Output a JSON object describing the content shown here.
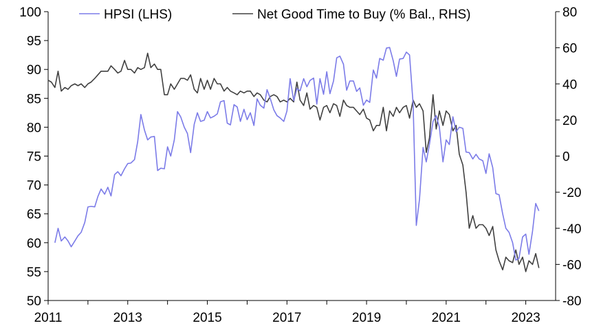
{
  "chart_data": {
    "type": "line",
    "title": "",
    "xlabel": "",
    "ylabel_left": "",
    "ylabel_right": "",
    "x_ticks": [
      "2011",
      "2013",
      "2015",
      "2017",
      "2019",
      "2021",
      "2023"
    ],
    "x_range": [
      2011.0,
      2023.75
    ],
    "ylim_left": [
      50,
      100
    ],
    "ylim_right": [
      -80,
      80
    ],
    "yticks_left": [
      "100",
      "95",
      "90",
      "85",
      "80",
      "75",
      "70",
      "65",
      "60",
      "55",
      "50"
    ],
    "yticks_right": [
      "80",
      "60",
      "40",
      "20",
      "0",
      "-20",
      "-40",
      "-60",
      "-80"
    ],
    "legend": {
      "placement": "top"
    },
    "series": [
      {
        "name": "HPSI (LHS)",
        "axis": "left",
        "color": "#7b7be8",
        "points": [
          [
            2011.17,
            60.0
          ],
          [
            2011.25,
            62.5
          ],
          [
            2011.33,
            60.3
          ],
          [
            2011.42,
            61.0
          ],
          [
            2011.5,
            60.3
          ],
          [
            2011.58,
            59.3
          ],
          [
            2011.67,
            60.3
          ],
          [
            2011.75,
            61.2
          ],
          [
            2011.83,
            61.8
          ],
          [
            2011.92,
            63.5
          ],
          [
            2012.0,
            66.2
          ],
          [
            2012.08,
            66.3
          ],
          [
            2012.17,
            66.2
          ],
          [
            2012.25,
            68.0
          ],
          [
            2012.33,
            69.3
          ],
          [
            2012.42,
            68.4
          ],
          [
            2012.5,
            69.6
          ],
          [
            2012.58,
            68.1
          ],
          [
            2012.67,
            71.8
          ],
          [
            2012.75,
            72.3
          ],
          [
            2012.83,
            71.6
          ],
          [
            2012.92,
            72.8
          ],
          [
            2013.0,
            73.7
          ],
          [
            2013.08,
            73.8
          ],
          [
            2013.17,
            74.4
          ],
          [
            2013.25,
            77.5
          ],
          [
            2013.33,
            82.2
          ],
          [
            2013.42,
            79.5
          ],
          [
            2013.5,
            77.8
          ],
          [
            2013.58,
            78.3
          ],
          [
            2013.67,
            78.4
          ],
          [
            2013.75,
            72.5
          ],
          [
            2013.83,
            72.9
          ],
          [
            2013.92,
            72.8
          ],
          [
            2014.0,
            76.6
          ],
          [
            2014.08,
            75.0
          ],
          [
            2014.17,
            77.8
          ],
          [
            2014.25,
            82.7
          ],
          [
            2014.33,
            81.8
          ],
          [
            2014.42,
            80.0
          ],
          [
            2014.5,
            78.9
          ],
          [
            2014.58,
            75.6
          ],
          [
            2014.67,
            80.5
          ],
          [
            2014.75,
            82.5
          ],
          [
            2014.83,
            81.0
          ],
          [
            2014.92,
            81.2
          ],
          [
            2015.0,
            82.7
          ],
          [
            2015.08,
            81.6
          ],
          [
            2015.17,
            81.9
          ],
          [
            2015.25,
            82.3
          ],
          [
            2015.33,
            84.4
          ],
          [
            2015.42,
            84.6
          ],
          [
            2015.5,
            80.7
          ],
          [
            2015.58,
            80.4
          ],
          [
            2015.67,
            83.9
          ],
          [
            2015.75,
            83.5
          ],
          [
            2015.83,
            81.0
          ],
          [
            2015.92,
            83.1
          ],
          [
            2016.0,
            81.3
          ],
          [
            2016.08,
            82.5
          ],
          [
            2016.17,
            80.3
          ],
          [
            2016.25,
            84.9
          ],
          [
            2016.33,
            83.8
          ],
          [
            2016.42,
            83.3
          ],
          [
            2016.5,
            86.5
          ],
          [
            2016.58,
            85.0
          ],
          [
            2016.67,
            83.0
          ],
          [
            2016.75,
            82.0
          ],
          [
            2016.83,
            81.6
          ],
          [
            2016.92,
            81.0
          ],
          [
            2017.0,
            82.8
          ],
          [
            2017.08,
            88.4
          ],
          [
            2017.17,
            84.6
          ],
          [
            2017.25,
            86.7
          ],
          [
            2017.33,
            86.3
          ],
          [
            2017.42,
            88.4
          ],
          [
            2017.5,
            87.0
          ],
          [
            2017.58,
            88.1
          ],
          [
            2017.67,
            88.5
          ],
          [
            2017.75,
            84.0
          ],
          [
            2017.83,
            88.4
          ],
          [
            2017.92,
            85.7
          ],
          [
            2018.0,
            89.6
          ],
          [
            2018.08,
            85.8
          ],
          [
            2018.17,
            88.0
          ],
          [
            2018.25,
            92.0
          ],
          [
            2018.33,
            92.3
          ],
          [
            2018.42,
            90.9
          ],
          [
            2018.5,
            86.4
          ],
          [
            2018.58,
            88.0
          ],
          [
            2018.67,
            88.0
          ],
          [
            2018.75,
            86.2
          ],
          [
            2018.83,
            86.8
          ],
          [
            2018.92,
            83.8
          ],
          [
            2019.0,
            84.7
          ],
          [
            2019.08,
            84.3
          ],
          [
            2019.17,
            89.9
          ],
          [
            2019.25,
            88.5
          ],
          [
            2019.33,
            91.9
          ],
          [
            2019.42,
            91.6
          ],
          [
            2019.5,
            93.7
          ],
          [
            2019.58,
            93.8
          ],
          [
            2019.67,
            91.5
          ],
          [
            2019.75,
            88.8
          ],
          [
            2019.83,
            91.8
          ],
          [
            2019.92,
            91.9
          ],
          [
            2020.0,
            93.0
          ],
          [
            2020.08,
            92.5
          ],
          [
            2020.17,
            84.0
          ],
          [
            2020.25,
            63.0
          ],
          [
            2020.33,
            67.5
          ],
          [
            2020.42,
            76.5
          ],
          [
            2020.5,
            74.0
          ],
          [
            2020.58,
            77.0
          ],
          [
            2020.67,
            81.0
          ],
          [
            2020.75,
            82.0
          ],
          [
            2020.83,
            80.0
          ],
          [
            2020.92,
            74.0
          ],
          [
            2021.0,
            77.8
          ],
          [
            2021.08,
            77.0
          ],
          [
            2021.17,
            81.8
          ],
          [
            2021.25,
            79.2
          ],
          [
            2021.33,
            80.0
          ],
          [
            2021.42,
            79.8
          ],
          [
            2021.5,
            75.7
          ],
          [
            2021.58,
            75.6
          ],
          [
            2021.67,
            74.5
          ],
          [
            2021.75,
            75.3
          ],
          [
            2021.83,
            74.5
          ],
          [
            2021.92,
            74.2
          ],
          [
            2022.0,
            72.0
          ],
          [
            2022.08,
            75.4
          ],
          [
            2022.17,
            73.0
          ],
          [
            2022.25,
            68.5
          ],
          [
            2022.33,
            68.3
          ],
          [
            2022.42,
            65.0
          ],
          [
            2022.5,
            62.5
          ],
          [
            2022.58,
            61.8
          ],
          [
            2022.67,
            60.0
          ],
          [
            2022.75,
            57.0
          ],
          [
            2022.83,
            57.3
          ],
          [
            2022.92,
            61.0
          ],
          [
            2023.0,
            61.5
          ],
          [
            2023.08,
            58.0
          ],
          [
            2023.17,
            62.0
          ],
          [
            2023.25,
            66.8
          ],
          [
            2023.33,
            65.5
          ]
        ]
      },
      {
        "name": "Net Good Time to Buy (% Bal., RHS)",
        "axis": "right",
        "color": "#404040",
        "points": [
          [
            2011.0,
            42
          ],
          [
            2011.08,
            41
          ],
          [
            2011.17,
            38
          ],
          [
            2011.25,
            47
          ],
          [
            2011.33,
            36
          ],
          [
            2011.42,
            38
          ],
          [
            2011.5,
            37
          ],
          [
            2011.58,
            39
          ],
          [
            2011.67,
            40
          ],
          [
            2011.75,
            39
          ],
          [
            2011.83,
            40
          ],
          [
            2011.92,
            38
          ],
          [
            2012.0,
            40
          ],
          [
            2012.08,
            41
          ],
          [
            2012.17,
            43
          ],
          [
            2012.25,
            45
          ],
          [
            2012.33,
            47
          ],
          [
            2012.42,
            47
          ],
          [
            2012.5,
            47
          ],
          [
            2012.58,
            50
          ],
          [
            2012.67,
            48
          ],
          [
            2012.75,
            46
          ],
          [
            2012.83,
            47
          ],
          [
            2012.92,
            53
          ],
          [
            2013.0,
            48
          ],
          [
            2013.08,
            48
          ],
          [
            2013.17,
            46
          ],
          [
            2013.25,
            49
          ],
          [
            2013.33,
            48
          ],
          [
            2013.42,
            49
          ],
          [
            2013.5,
            57
          ],
          [
            2013.58,
            49
          ],
          [
            2013.67,
            51
          ],
          [
            2013.75,
            48
          ],
          [
            2013.83,
            48
          ],
          [
            2013.92,
            34
          ],
          [
            2014.0,
            34
          ],
          [
            2014.08,
            40
          ],
          [
            2014.17,
            37
          ],
          [
            2014.25,
            40
          ],
          [
            2014.33,
            43
          ],
          [
            2014.42,
            43
          ],
          [
            2014.5,
            42
          ],
          [
            2014.58,
            45
          ],
          [
            2014.67,
            37
          ],
          [
            2014.75,
            35
          ],
          [
            2014.83,
            43
          ],
          [
            2014.92,
            37
          ],
          [
            2015.0,
            42
          ],
          [
            2015.08,
            37
          ],
          [
            2015.17,
            43
          ],
          [
            2015.25,
            40
          ],
          [
            2015.33,
            40
          ],
          [
            2015.42,
            36
          ],
          [
            2015.5,
            38
          ],
          [
            2015.58,
            36
          ],
          [
            2015.67,
            35
          ],
          [
            2015.75,
            34
          ],
          [
            2015.83,
            36
          ],
          [
            2015.92,
            35
          ],
          [
            2016.0,
            36
          ],
          [
            2016.08,
            36
          ],
          [
            2016.17,
            33
          ],
          [
            2016.25,
            35
          ],
          [
            2016.33,
            34
          ],
          [
            2016.42,
            31
          ],
          [
            2016.5,
            30
          ],
          [
            2016.58,
            33
          ],
          [
            2016.67,
            34
          ],
          [
            2016.75,
            33
          ],
          [
            2016.83,
            30
          ],
          [
            2016.92,
            31
          ],
          [
            2017.0,
            30
          ],
          [
            2017.08,
            32
          ],
          [
            2017.17,
            30
          ],
          [
            2017.25,
            41
          ],
          [
            2017.33,
            31
          ],
          [
            2017.42,
            28
          ],
          [
            2017.5,
            35
          ],
          [
            2017.58,
            26
          ],
          [
            2017.67,
            28
          ],
          [
            2017.75,
            27
          ],
          [
            2017.83,
            20
          ],
          [
            2017.92,
            27
          ],
          [
            2018.0,
            28
          ],
          [
            2018.08,
            24
          ],
          [
            2018.17,
            29
          ],
          [
            2018.25,
            28
          ],
          [
            2018.33,
            22
          ],
          [
            2018.42,
            31
          ],
          [
            2018.5,
            28
          ],
          [
            2018.58,
            27
          ],
          [
            2018.67,
            27
          ],
          [
            2018.75,
            25
          ],
          [
            2018.83,
            23
          ],
          [
            2018.92,
            26
          ],
          [
            2019.0,
            21
          ],
          [
            2019.08,
            20
          ],
          [
            2019.17,
            14
          ],
          [
            2019.25,
            17
          ],
          [
            2019.33,
            17
          ],
          [
            2019.42,
            27
          ],
          [
            2019.5,
            14
          ],
          [
            2019.58,
            25
          ],
          [
            2019.67,
            22
          ],
          [
            2019.75,
            27
          ],
          [
            2019.83,
            24
          ],
          [
            2019.92,
            27
          ],
          [
            2020.0,
            28
          ],
          [
            2020.08,
            21
          ],
          [
            2020.17,
            31
          ],
          [
            2020.25,
            27
          ],
          [
            2020.33,
            29
          ],
          [
            2020.42,
            25
          ],
          [
            2020.5,
            2
          ],
          [
            2020.58,
            10
          ],
          [
            2020.67,
            34
          ],
          [
            2020.75,
            15
          ],
          [
            2020.83,
            25
          ],
          [
            2020.92,
            17
          ],
          [
            2021.0,
            25
          ],
          [
            2021.08,
            23
          ],
          [
            2021.17,
            14
          ],
          [
            2021.25,
            17
          ],
          [
            2021.33,
            1
          ],
          [
            2021.42,
            -5
          ],
          [
            2021.5,
            -20
          ],
          [
            2021.58,
            -40
          ],
          [
            2021.67,
            -33
          ],
          [
            2021.75,
            -40
          ],
          [
            2021.83,
            -38
          ],
          [
            2021.92,
            -38
          ],
          [
            2022.0,
            -40
          ],
          [
            2022.08,
            -44
          ],
          [
            2022.17,
            -39
          ],
          [
            2022.25,
            -52
          ],
          [
            2022.33,
            -58
          ],
          [
            2022.42,
            -63
          ],
          [
            2022.5,
            -56
          ],
          [
            2022.58,
            -58
          ],
          [
            2022.67,
            -59
          ],
          [
            2022.75,
            -52
          ],
          [
            2022.83,
            -60
          ],
          [
            2022.92,
            -56
          ],
          [
            2023.0,
            -64
          ],
          [
            2023.08,
            -58
          ],
          [
            2023.17,
            -60
          ],
          [
            2023.25,
            -54
          ],
          [
            2023.33,
            -62
          ]
        ]
      }
    ]
  }
}
